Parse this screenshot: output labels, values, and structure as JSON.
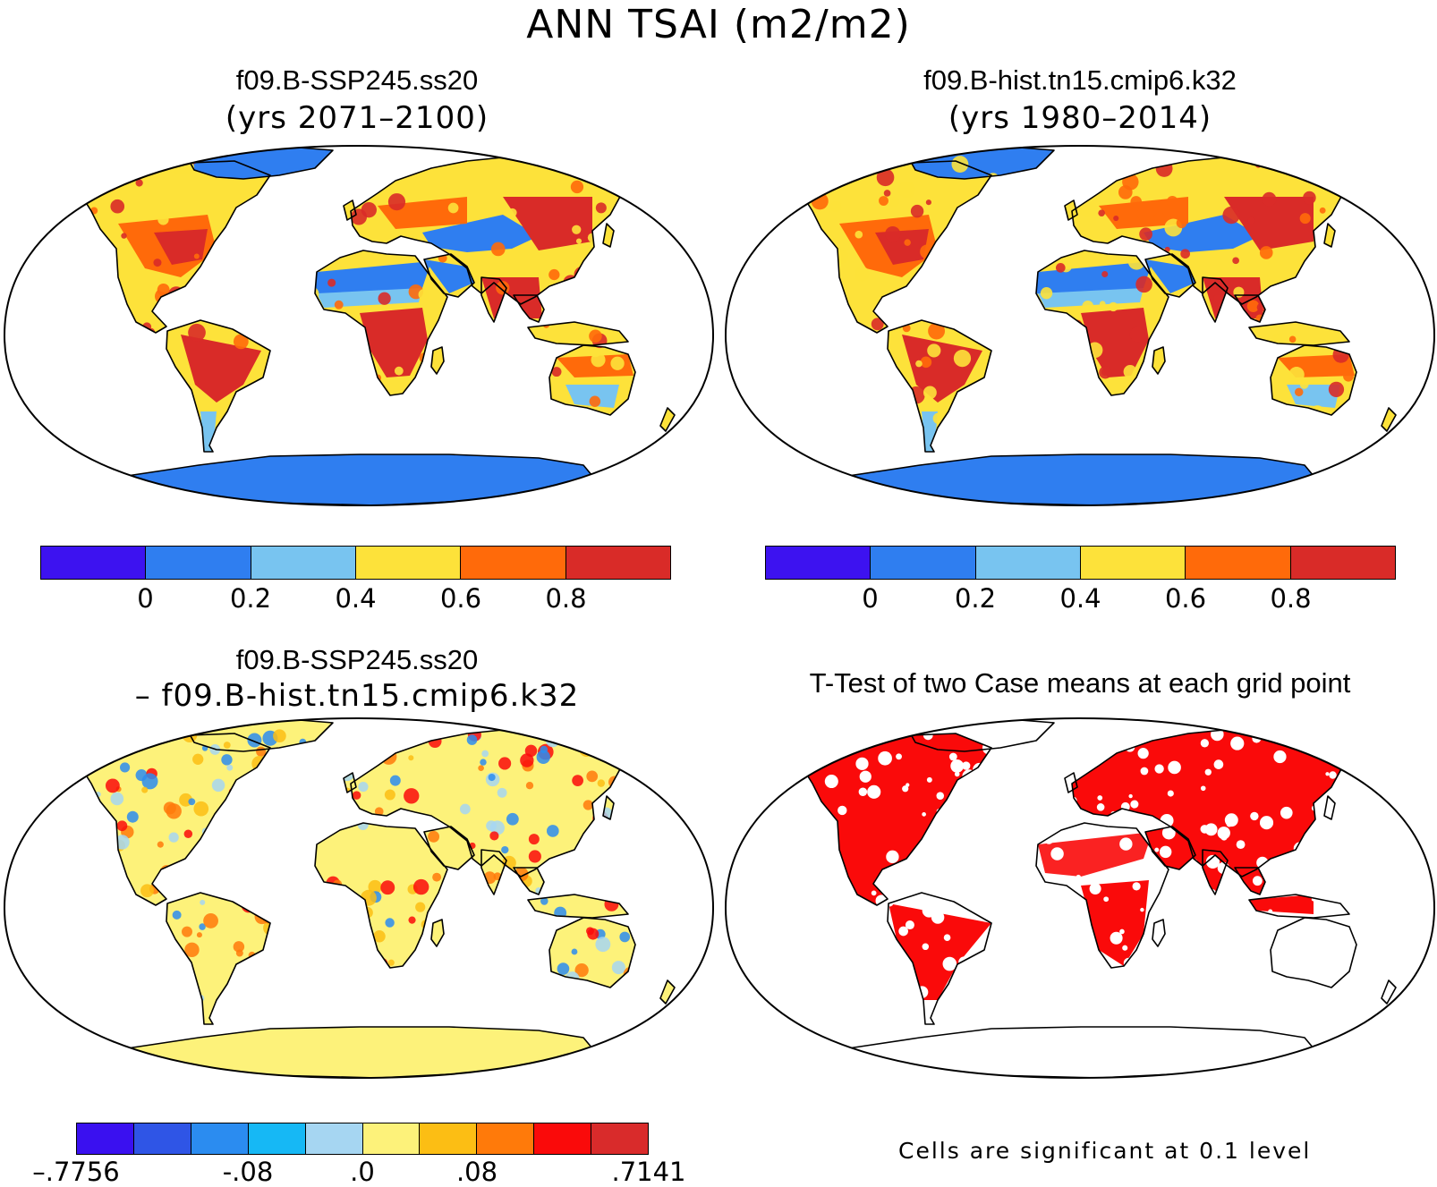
{
  "title": "ANN TSAI (m2/m2)",
  "panels": {
    "top_left": {
      "case": "f09.B-SSP245.ss20",
      "years": "(yrs 2071–2100)"
    },
    "top_right": {
      "case": "f09.B-hist.tn15.cmip6.k32",
      "years": "(yrs 1980–2014)"
    },
    "bottom_left": {
      "case": "f09.B-SSP245.ss20",
      "minus_case": "– f09.B-hist.tn15.cmip6.k32"
    },
    "bottom_right": {
      "title": "T-Test of two Case means at each grid point",
      "note": "Cells are significant at 0.1 level"
    }
  },
  "colorbar_abs": {
    "colors": [
      "#3d12f0",
      "#2f7ef0",
      "#78c4f0",
      "#fde23a",
      "#ff6a0a",
      "#d92b28"
    ],
    "ticks": [
      "0",
      "0.2",
      "0.4",
      "0.6",
      "0.8"
    ]
  },
  "colorbar_diff": {
    "colors": [
      "#3a10f0",
      "#2f55e6",
      "#2b8cf0",
      "#16b8f5",
      "#a6d6f2",
      "#fdf27a",
      "#fcbe14",
      "#ff7a0a",
      "#fa0a0a",
      "#d92b2b"
    ],
    "ticks": [
      ".7756",
      "-.08",
      ".0",
      ".08",
      ".7141"
    ],
    "tick_prefix_first": "–"
  },
  "map_colors": {
    "ocean": "#ffffff",
    "outline": "#000000",
    "abs_fill": [
      "#fde23a",
      "#ff6a0a",
      "#d92b28",
      "#2f7ef0",
      "#78c4f0"
    ],
    "diff_fill": [
      "#fdf27a",
      "#fcbe14",
      "#a6d6f2",
      "#2b8cf0",
      "#ff7a0a",
      "#fa0a0a"
    ],
    "ttest_fill": "#fa0a0a"
  }
}
